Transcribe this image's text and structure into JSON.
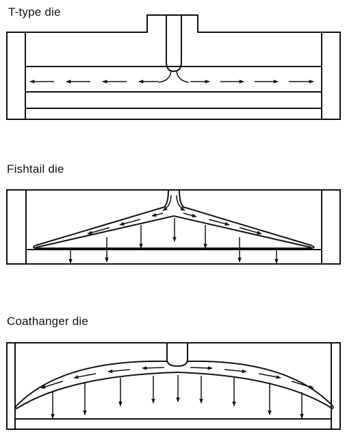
{
  "colors": {
    "line": "#111111",
    "background": "#ffffff"
  },
  "panels": [
    {
      "id": "t-type",
      "caption": "T-type die"
    },
    {
      "id": "fishtail",
      "caption": "Fishtail die"
    },
    {
      "id": "coathanger",
      "caption": "Coathanger die"
    }
  ]
}
